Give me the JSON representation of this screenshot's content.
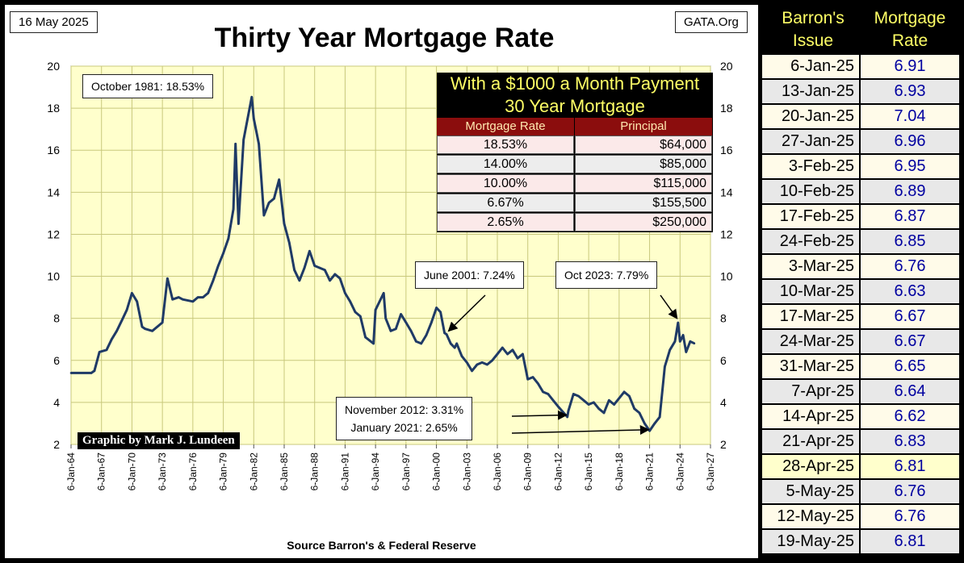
{
  "header": {
    "date_label": "16 May 2025",
    "title": "Thirty Year Mortgage Rate",
    "site_label": "GATA.Org"
  },
  "footer": {
    "credit": "Graphic by Mark J. Lundeen",
    "source": "Source Barron's & Federal Reserve"
  },
  "annotations": {
    "peak": "October 1981:  18.53%",
    "june2001": "June 2001:  7.24%",
    "oct2023": "Oct 2023:  7.79%",
    "nov2012": "November 2012:  3.31%",
    "jan2021": "January 2021:  2.65%"
  },
  "payment_table": {
    "title_line1": "With a $1000 a Month Payment",
    "title_line2": "30 Year Mortgage",
    "col_rate": "Mortgage Rate",
    "col_principal": "Principal",
    "rows": [
      {
        "rate": "18.53%",
        "principal": "$64,000"
      },
      {
        "rate": "14.00%",
        "principal": "$85,000"
      },
      {
        "rate": "10.00%",
        "principal": "$115,000"
      },
      {
        "rate": "6.67%",
        "principal": "$155,500"
      },
      {
        "rate": "2.65%",
        "principal": "$250,000"
      }
    ]
  },
  "side_table": {
    "col_issue": "Barron's Issue",
    "col_rate": "Mortgage Rate",
    "rows": [
      {
        "issue": "6-Jan-25",
        "rate": "6.91"
      },
      {
        "issue": "13-Jan-25",
        "rate": "6.93"
      },
      {
        "issue": "20-Jan-25",
        "rate": "7.04"
      },
      {
        "issue": "27-Jan-25",
        "rate": "6.96"
      },
      {
        "issue": "3-Feb-25",
        "rate": "6.95"
      },
      {
        "issue": "10-Feb-25",
        "rate": "6.89"
      },
      {
        "issue": "17-Feb-25",
        "rate": "6.87"
      },
      {
        "issue": "24-Feb-25",
        "rate": "6.85"
      },
      {
        "issue": "3-Mar-25",
        "rate": "6.76"
      },
      {
        "issue": "10-Mar-25",
        "rate": "6.63"
      },
      {
        "issue": "17-Mar-25",
        "rate": "6.67"
      },
      {
        "issue": "24-Mar-25",
        "rate": "6.67"
      },
      {
        "issue": "31-Mar-25",
        "rate": "6.65"
      },
      {
        "issue": "7-Apr-25",
        "rate": "6.64"
      },
      {
        "issue": "14-Apr-25",
        "rate": "6.62"
      },
      {
        "issue": "21-Apr-25",
        "rate": "6.83"
      },
      {
        "issue": "28-Apr-25",
        "rate": "6.81"
      },
      {
        "issue": "5-May-25",
        "rate": "6.76"
      },
      {
        "issue": "12-May-25",
        "rate": "6.76"
      },
      {
        "issue": "19-May-25",
        "rate": "6.81"
      }
    ]
  },
  "colors": {
    "plot_bg": "#ffffcc",
    "grid": "#c8c87c",
    "line": "#1f3a66",
    "table_header": "#8b0d0d",
    "table_title": "#ffff66"
  },
  "chart_data": {
    "type": "line",
    "title": "Thirty Year Mortgage Rate",
    "xlabel": "",
    "ylabel": "",
    "ylim": [
      2,
      20
    ],
    "xlim": [
      1964,
      2027
    ],
    "yticks": [
      2,
      4,
      6,
      8,
      10,
      12,
      14,
      16,
      18,
      20
    ],
    "xtick_labels": [
      "6-Jan-64",
      "6-Jan-67",
      "6-Jan-70",
      "6-Jan-73",
      "6-Jan-76",
      "6-Jan-79",
      "6-Jan-82",
      "6-Jan-85",
      "6-Jan-88",
      "6-Jan-91",
      "6-Jan-94",
      "6-Jan-97",
      "6-Jan-00",
      "6-Jan-03",
      "6-Jan-06",
      "6-Jan-09",
      "6-Jan-12",
      "6-Jan-15",
      "6-Jan-18",
      "6-Jan-21",
      "6-Jan-24",
      "6-Jan-27"
    ],
    "grid": true,
    "series": [
      {
        "name": "30 Year Mortgage Rate",
        "x": [
          1964,
          1966,
          1966.3,
          1966.8,
          1967.5,
          1968,
          1968.5,
          1969,
          1969.5,
          1970,
          1970.5,
          1971,
          1971.3,
          1972,
          1973,
          1973.5,
          1974,
          1974.6,
          1975,
          1976,
          1976.5,
          1977,
          1977.5,
          1978,
          1978.5,
          1979,
          1979.5,
          1980,
          1980.2,
          1980.5,
          1981,
          1981.8,
          1982,
          1982.5,
          1983,
          1983.5,
          1984,
          1984.5,
          1985,
          1985.5,
          1986,
          1986.5,
          1987,
          1987.5,
          1988,
          1988.5,
          1989,
          1989.5,
          1990,
          1990.5,
          1991,
          1991.5,
          1992,
          1992.5,
          1993,
          1993.8,
          1994,
          1994.8,
          1995,
          1995.5,
          1996,
          1996.5,
          1997,
          1997.5,
          1998,
          1998.5,
          1999,
          1999.5,
          2000,
          2000.4,
          2000.8,
          2001,
          2001.4,
          2001.8,
          2002,
          2002.5,
          2003,
          2003.5,
          2004,
          2004.5,
          2005,
          2005.5,
          2006,
          2006.5,
          2007,
          2007.5,
          2008,
          2008.5,
          2009,
          2009.5,
          2010,
          2010.5,
          2011,
          2011.5,
          2012,
          2012.9,
          2013,
          2013.5,
          2014,
          2014.5,
          2015,
          2015.5,
          2016,
          2016.5,
          2017,
          2017.5,
          2018,
          2018.5,
          2019,
          2019.5,
          2020,
          2020.5,
          2021,
          2021.5,
          2022,
          2022.5,
          2023,
          2023.5,
          2023.8,
          2024,
          2024.3,
          2024.6,
          2025,
          2025.4
        ],
        "values": [
          5.4,
          5.4,
          5.5,
          6.4,
          6.5,
          7.0,
          7.4,
          7.9,
          8.4,
          9.2,
          8.8,
          7.6,
          7.5,
          7.4,
          7.8,
          9.9,
          8.9,
          9.0,
          8.9,
          8.8,
          9.0,
          9.0,
          9.2,
          9.8,
          10.5,
          11.1,
          11.8,
          13.2,
          16.3,
          12.5,
          16.5,
          18.53,
          17.5,
          16.3,
          12.9,
          13.5,
          13.7,
          14.6,
          12.5,
          11.6,
          10.3,
          9.8,
          10.4,
          11.2,
          10.5,
          10.4,
          10.3,
          9.8,
          10.1,
          9.9,
          9.2,
          8.8,
          8.3,
          8.1,
          7.1,
          6.8,
          8.4,
          9.2,
          8.0,
          7.4,
          7.5,
          8.2,
          7.8,
          7.4,
          6.9,
          6.8,
          7.2,
          7.8,
          8.5,
          8.3,
          7.3,
          7.24,
          6.8,
          6.6,
          6.8,
          6.2,
          5.9,
          5.5,
          5.8,
          5.9,
          5.8,
          6.0,
          6.3,
          6.6,
          6.3,
          6.5,
          6.1,
          6.3,
          5.1,
          5.2,
          4.9,
          4.5,
          4.4,
          4.1,
          3.8,
          3.31,
          3.6,
          4.4,
          4.3,
          4.1,
          3.9,
          4.0,
          3.7,
          3.5,
          4.1,
          3.9,
          4.2,
          4.5,
          4.3,
          3.7,
          3.5,
          3.0,
          2.65,
          3.0,
          3.3,
          5.7,
          6.5,
          6.9,
          7.79,
          6.9,
          7.2,
          6.4,
          6.9,
          6.81
        ]
      }
    ]
  }
}
